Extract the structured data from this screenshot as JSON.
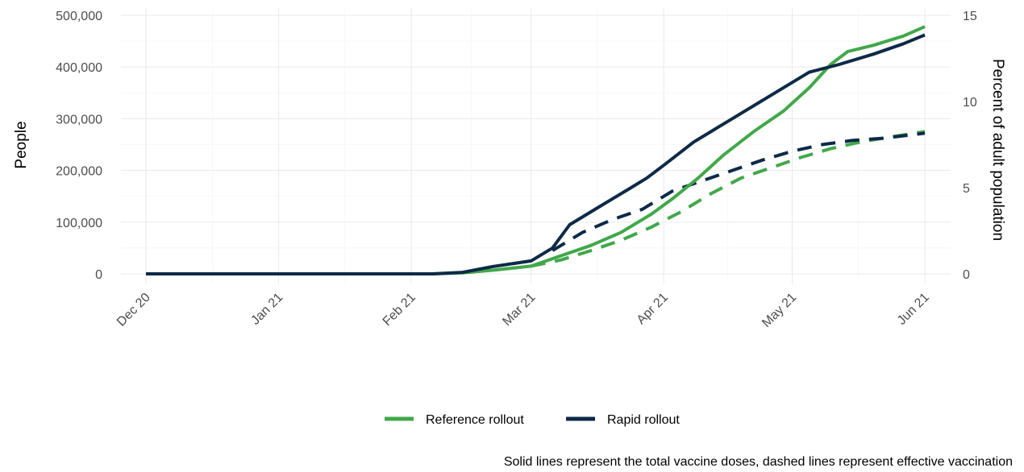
{
  "chart_data": {
    "type": "line",
    "xlim": [
      "2020-12-01",
      "2021-06-01"
    ],
    "x_ticks": [
      {
        "date": "2020-12-01",
        "label": "Dec 20"
      },
      {
        "date": "2021-01-01",
        "label": "Jan 21"
      },
      {
        "date": "2021-02-01",
        "label": "Feb 21"
      },
      {
        "date": "2021-03-01",
        "label": "Mar 21"
      },
      {
        "date": "2021-04-01",
        "label": "Apr 21"
      },
      {
        "date": "2021-05-01",
        "label": "May 21"
      },
      {
        "date": "2021-06-01",
        "label": "Jun 21"
      }
    ],
    "ylabel": "People",
    "ylim": [
      0,
      500000
    ],
    "y_ticks": [
      {
        "value": 0,
        "label": "0"
      },
      {
        "value": 100000,
        "label": "100,000"
      },
      {
        "value": 200000,
        "label": "200,000"
      },
      {
        "value": 300000,
        "label": "300,000"
      },
      {
        "value": 400000,
        "label": "400,000"
      },
      {
        "value": 500000,
        "label": "500,000"
      }
    ],
    "y2label": "Percent of adult population",
    "y2_ticks": [
      {
        "value": 0,
        "label": "0"
      },
      {
        "value": 5,
        "label": "5"
      },
      {
        "value": 10,
        "label": "10"
      },
      {
        "value": 15,
        "label": "15"
      }
    ],
    "y2_per_percent": 33333,
    "grid": true,
    "legend_position": "bottom",
    "legend": [
      {
        "label": "Reference rollout",
        "color": "#41a84a"
      },
      {
        "label": "Rapid rollout",
        "color": "#0d2a47"
      }
    ],
    "caption": "Solid lines represent the total vaccine doses, dashed lines represent effective vaccination",
    "series": [
      {
        "legend": "Reference rollout",
        "color": "#41a84a",
        "style": "solid",
        "measure": "total vaccine doses",
        "points": [
          [
            "2020-12-01",
            0
          ],
          [
            "2021-02-06",
            0
          ],
          [
            "2021-02-13",
            2000
          ],
          [
            "2021-02-20",
            7000
          ],
          [
            "2021-03-01",
            15000
          ],
          [
            "2021-03-08",
            35000
          ],
          [
            "2021-03-15",
            55000
          ],
          [
            "2021-03-22",
            80000
          ],
          [
            "2021-03-29",
            115000
          ],
          [
            "2021-04-03",
            145000
          ],
          [
            "2021-04-09",
            185000
          ],
          [
            "2021-04-15",
            230000
          ],
          [
            "2021-04-22",
            275000
          ],
          [
            "2021-04-29",
            315000
          ],
          [
            "2021-05-05",
            360000
          ],
          [
            "2021-05-10",
            405000
          ],
          [
            "2021-05-14",
            430000
          ],
          [
            "2021-05-20",
            442000
          ],
          [
            "2021-05-27",
            460000
          ],
          [
            "2021-06-01",
            478000
          ]
        ]
      },
      {
        "legend": "Rapid rollout",
        "color": "#0d2a47",
        "style": "solid",
        "measure": "total vaccine doses",
        "points": [
          [
            "2020-12-01",
            0
          ],
          [
            "2021-02-06",
            0
          ],
          [
            "2021-02-13",
            3000
          ],
          [
            "2021-02-20",
            14000
          ],
          [
            "2021-03-01",
            25000
          ],
          [
            "2021-03-06",
            50000
          ],
          [
            "2021-03-10",
            95000
          ],
          [
            "2021-03-17",
            130000
          ],
          [
            "2021-03-24",
            165000
          ],
          [
            "2021-03-28",
            185000
          ],
          [
            "2021-04-01",
            210000
          ],
          [
            "2021-04-08",
            255000
          ],
          [
            "2021-04-15",
            290000
          ],
          [
            "2021-04-22",
            325000
          ],
          [
            "2021-04-28",
            355000
          ],
          [
            "2021-05-05",
            390000
          ],
          [
            "2021-05-12",
            405000
          ],
          [
            "2021-05-20",
            425000
          ],
          [
            "2021-05-27",
            445000
          ],
          [
            "2021-06-01",
            462000
          ]
        ]
      },
      {
        "legend": "Reference rollout",
        "color": "#41a84a",
        "style": "dashed",
        "measure": "effective vaccination",
        "points": [
          [
            "2021-03-01",
            15000
          ],
          [
            "2021-03-08",
            27000
          ],
          [
            "2021-03-15",
            45000
          ],
          [
            "2021-03-22",
            65000
          ],
          [
            "2021-03-29",
            90000
          ],
          [
            "2021-04-05",
            120000
          ],
          [
            "2021-04-12",
            155000
          ],
          [
            "2021-04-19",
            185000
          ],
          [
            "2021-04-26",
            205000
          ],
          [
            "2021-05-03",
            225000
          ],
          [
            "2021-05-10",
            242000
          ],
          [
            "2021-05-17",
            255000
          ],
          [
            "2021-05-24",
            265000
          ],
          [
            "2021-06-01",
            275000
          ]
        ]
      },
      {
        "legend": "Rapid rollout",
        "color": "#0d2a47",
        "style": "dashed",
        "measure": "effective vaccination",
        "points": [
          [
            "2021-03-06",
            45000
          ],
          [
            "2021-03-13",
            80000
          ],
          [
            "2021-03-20",
            105000
          ],
          [
            "2021-03-27",
            125000
          ],
          [
            "2021-04-03",
            160000
          ],
          [
            "2021-04-10",
            180000
          ],
          [
            "2021-04-17",
            200000
          ],
          [
            "2021-04-24",
            220000
          ],
          [
            "2021-05-01",
            237000
          ],
          [
            "2021-05-08",
            250000
          ],
          [
            "2021-05-15",
            258000
          ],
          [
            "2021-05-22",
            262000
          ],
          [
            "2021-06-01",
            272000
          ]
        ]
      }
    ]
  }
}
